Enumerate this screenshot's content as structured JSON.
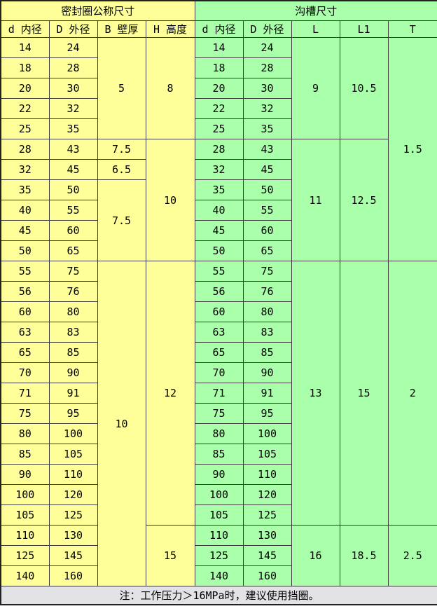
{
  "table": {
    "left_section_title": "密封圈公称尺寸",
    "right_section_title": "沟槽尺寸",
    "left_columns": [
      "d 内径",
      "D 外径",
      "B 壁厚",
      "H 高度"
    ],
    "right_columns": [
      "d 内径",
      "D 外径",
      "L",
      "L1",
      "T"
    ],
    "rows": [
      {
        "d": "14",
        "D": "24"
      },
      {
        "d": "18",
        "D": "28"
      },
      {
        "d": "20",
        "D": "30"
      },
      {
        "d": "22",
        "D": "32"
      },
      {
        "d": "25",
        "D": "35"
      },
      {
        "d": "28",
        "D": "43"
      },
      {
        "d": "32",
        "D": "45"
      },
      {
        "d": "35",
        "D": "50"
      },
      {
        "d": "40",
        "D": "55"
      },
      {
        "d": "45",
        "D": "60"
      },
      {
        "d": "50",
        "D": "65"
      },
      {
        "d": "55",
        "D": "75"
      },
      {
        "d": "56",
        "D": "76"
      },
      {
        "d": "60",
        "D": "80"
      },
      {
        "d": "63",
        "D": "83"
      },
      {
        "d": "65",
        "D": "85"
      },
      {
        "d": "70",
        "D": "90"
      },
      {
        "d": "71",
        "D": "91"
      },
      {
        "d": "75",
        "D": "95"
      },
      {
        "d": "80",
        "D": "100"
      },
      {
        "d": "85",
        "D": "105"
      },
      {
        "d": "90",
        "D": "110"
      },
      {
        "d": "100",
        "D": "120"
      },
      {
        "d": "105",
        "D": "125"
      },
      {
        "d": "110",
        "D": "130"
      },
      {
        "d": "125",
        "D": "145"
      },
      {
        "d": "140",
        "D": "160"
      }
    ],
    "wall_groups": [
      {
        "start": 0,
        "span": 5,
        "value": "5"
      },
      {
        "start": 5,
        "span": 1,
        "value": "7.5"
      },
      {
        "start": 6,
        "span": 1,
        "value": "6.5"
      },
      {
        "start": 7,
        "span": 4,
        "value": "7.5"
      },
      {
        "start": 11,
        "span": 16,
        "value": "10"
      }
    ],
    "height_groups": [
      {
        "start": 0,
        "span": 5,
        "value": "8"
      },
      {
        "start": 5,
        "span": 6,
        "value": "10"
      },
      {
        "start": 11,
        "span": 13,
        "value": "12"
      },
      {
        "start": 24,
        "span": 3,
        "value": "15"
      }
    ],
    "l_groups": [
      {
        "start": 0,
        "span": 5,
        "value": "9"
      },
      {
        "start": 5,
        "span": 6,
        "value": "11"
      },
      {
        "start": 11,
        "span": 13,
        "value": "13"
      },
      {
        "start": 24,
        "span": 3,
        "value": "16"
      }
    ],
    "l1_groups": [
      {
        "start": 0,
        "span": 5,
        "value": "10.5"
      },
      {
        "start": 5,
        "span": 6,
        "value": "12.5"
      },
      {
        "start": 11,
        "span": 13,
        "value": "15"
      },
      {
        "start": 24,
        "span": 3,
        "value": "18.5"
      }
    ],
    "t_groups": [
      {
        "start": 0,
        "span": 11,
        "value": "1.5"
      },
      {
        "start": 11,
        "span": 13,
        "value": "2"
      },
      {
        "start": 24,
        "span": 3,
        "value": "2.5"
      }
    ]
  },
  "note": "注：工作压力＞16MPa时，建议使用挡圈。",
  "colors": {
    "seal_section_bg": "#FFFF99",
    "groove_section_bg": "#AAFFAA",
    "note_bg": "#E3E3E7",
    "grid_line": "#3A3A3A"
  }
}
